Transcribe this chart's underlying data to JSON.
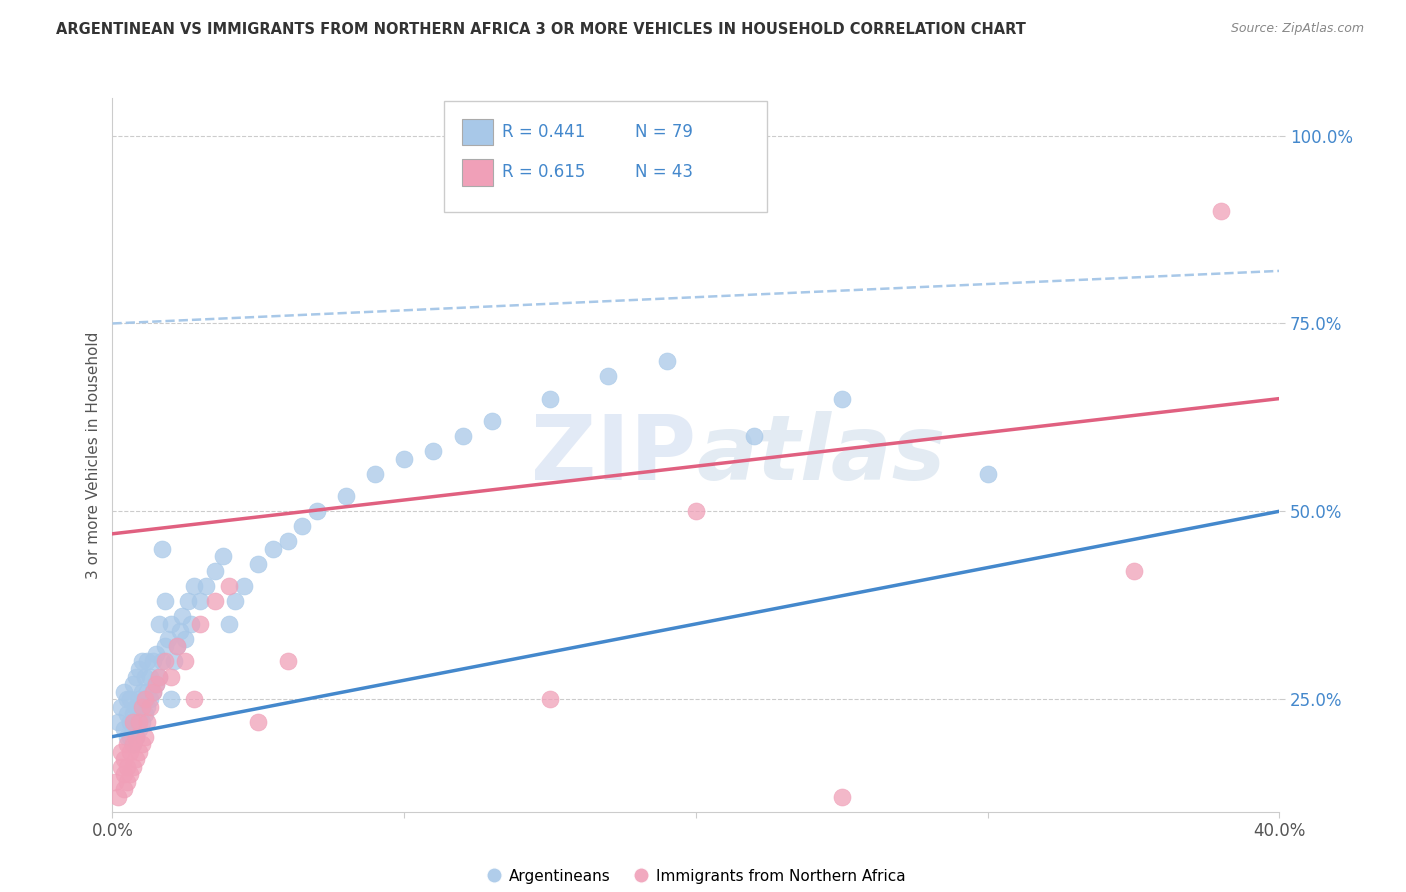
{
  "title": "ARGENTINEAN VS IMMIGRANTS FROM NORTHERN AFRICA 3 OR MORE VEHICLES IN HOUSEHOLD CORRELATION CHART",
  "source": "Source: ZipAtlas.com",
  "ylabel": "3 or more Vehicles in Household",
  "xlim": [
    0.0,
    0.4
  ],
  "ylim": [
    0.1,
    1.05
  ],
  "yticks": [
    0.25,
    0.5,
    0.75,
    1.0
  ],
  "ytick_labels": [
    "25.0%",
    "50.0%",
    "75.0%",
    "100.0%"
  ],
  "xticks": [
    0.0,
    0.1,
    0.2,
    0.3,
    0.4
  ],
  "xtick_labels": [
    "0.0%",
    "",
    "",
    "",
    "40.0%"
  ],
  "watermark_zip": "ZIP",
  "watermark_atlas": "atlas",
  "legend_r1": "R = 0.441",
  "legend_n1": "N = 79",
  "legend_r2": "R = 0.615",
  "legend_n2": "N = 43",
  "color_blue": "#A8C8E8",
  "color_pink": "#F0A0B8",
  "color_line_blue": "#4488CC",
  "color_line_pink": "#E06080",
  "color_line_dashed": "#A8C8E8",
  "color_text_blue": "#4488CC",
  "color_ytick": "#4488CC",
  "color_grid": "#CCCCCC",
  "blue_line_x": [
    0.0,
    0.4
  ],
  "blue_line_y": [
    0.2,
    0.5
  ],
  "pink_line_x": [
    0.0,
    0.4
  ],
  "pink_line_y": [
    0.47,
    0.65
  ],
  "dashed_line_x": [
    0.0,
    0.4
  ],
  "dashed_line_y": [
    0.75,
    0.82
  ],
  "arg_x": [
    0.002,
    0.003,
    0.004,
    0.004,
    0.005,
    0.005,
    0.005,
    0.006,
    0.006,
    0.006,
    0.007,
    0.007,
    0.007,
    0.007,
    0.008,
    0.008,
    0.008,
    0.008,
    0.009,
    0.009,
    0.009,
    0.009,
    0.01,
    0.01,
    0.01,
    0.01,
    0.011,
    0.011,
    0.011,
    0.012,
    0.012,
    0.012,
    0.013,
    0.013,
    0.014,
    0.014,
    0.015,
    0.015,
    0.016,
    0.016,
    0.017,
    0.017,
    0.018,
    0.018,
    0.019,
    0.02,
    0.02,
    0.021,
    0.022,
    0.023,
    0.024,
    0.025,
    0.026,
    0.027,
    0.028,
    0.03,
    0.032,
    0.035,
    0.038,
    0.04,
    0.042,
    0.045,
    0.05,
    0.055,
    0.06,
    0.065,
    0.07,
    0.08,
    0.09,
    0.1,
    0.11,
    0.12,
    0.13,
    0.15,
    0.17,
    0.19,
    0.22,
    0.25,
    0.3
  ],
  "arg_y": [
    0.22,
    0.24,
    0.21,
    0.26,
    0.2,
    0.23,
    0.25,
    0.2,
    0.22,
    0.25,
    0.19,
    0.21,
    0.23,
    0.27,
    0.2,
    0.22,
    0.24,
    0.28,
    0.21,
    0.23,
    0.25,
    0.29,
    0.22,
    0.24,
    0.26,
    0.3,
    0.23,
    0.25,
    0.28,
    0.24,
    0.26,
    0.3,
    0.25,
    0.28,
    0.26,
    0.3,
    0.27,
    0.31,
    0.28,
    0.35,
    0.3,
    0.45,
    0.32,
    0.38,
    0.33,
    0.25,
    0.35,
    0.3,
    0.32,
    0.34,
    0.36,
    0.33,
    0.38,
    0.35,
    0.4,
    0.38,
    0.4,
    0.42,
    0.44,
    0.35,
    0.38,
    0.4,
    0.43,
    0.45,
    0.46,
    0.48,
    0.5,
    0.52,
    0.55,
    0.57,
    0.58,
    0.6,
    0.62,
    0.65,
    0.68,
    0.7,
    0.6,
    0.65,
    0.55
  ],
  "na_x": [
    0.001,
    0.002,
    0.003,
    0.003,
    0.004,
    0.004,
    0.004,
    0.005,
    0.005,
    0.005,
    0.006,
    0.006,
    0.007,
    0.007,
    0.007,
    0.008,
    0.008,
    0.009,
    0.009,
    0.01,
    0.01,
    0.011,
    0.011,
    0.012,
    0.013,
    0.014,
    0.015,
    0.016,
    0.018,
    0.02,
    0.022,
    0.025,
    0.028,
    0.03,
    0.035,
    0.04,
    0.05,
    0.06,
    0.15,
    0.2,
    0.25,
    0.35,
    0.38
  ],
  "na_y": [
    0.14,
    0.12,
    0.16,
    0.18,
    0.13,
    0.15,
    0.17,
    0.14,
    0.16,
    0.19,
    0.15,
    0.18,
    0.16,
    0.19,
    0.22,
    0.17,
    0.2,
    0.18,
    0.22,
    0.19,
    0.24,
    0.2,
    0.25,
    0.22,
    0.24,
    0.26,
    0.27,
    0.28,
    0.3,
    0.28,
    0.32,
    0.3,
    0.25,
    0.35,
    0.38,
    0.4,
    0.22,
    0.3,
    0.25,
    0.5,
    0.12,
    0.42,
    0.9
  ]
}
